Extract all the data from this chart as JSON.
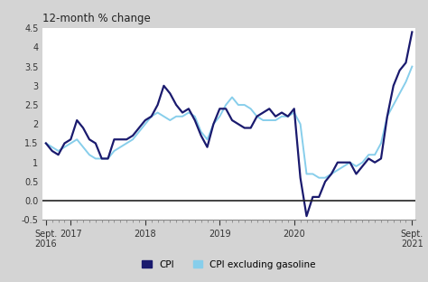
{
  "title": "12-month % change",
  "background_color": "#d4d4d4",
  "plot_bg_color": "#ffffff",
  "ylim": [
    -0.5,
    4.5
  ],
  "cpi_color": "#1a1a6e",
  "cpi_ex_color": "#87ceeb",
  "legend_cpi": "CPI",
  "legend_cpi_ex": "CPI excluding gasoline",
  "cpi": [
    1.5,
    1.3,
    1.2,
    1.5,
    1.6,
    2.1,
    1.9,
    1.6,
    1.5,
    1.1,
    1.1,
    1.6,
    1.6,
    1.6,
    1.7,
    1.9,
    2.1,
    2.2,
    2.5,
    3.0,
    2.8,
    2.5,
    2.3,
    2.4,
    2.1,
    1.7,
    1.4,
    2.0,
    2.4,
    2.4,
    2.1,
    2.0,
    1.9,
    1.9,
    2.2,
    2.3,
    2.4,
    2.2,
    2.3,
    2.2,
    2.4,
    0.6,
    -0.4,
    0.1,
    0.1,
    0.5,
    0.7,
    1.0,
    1.0,
    1.0,
    0.7,
    0.9,
    1.1,
    1.0,
    1.1,
    2.2,
    3.0,
    3.4,
    3.6,
    4.4
  ],
  "cpi_ex": [
    1.5,
    1.4,
    1.3,
    1.4,
    1.5,
    1.6,
    1.4,
    1.2,
    1.1,
    1.1,
    1.1,
    1.3,
    1.4,
    1.5,
    1.6,
    1.8,
    2.0,
    2.2,
    2.3,
    2.2,
    2.1,
    2.2,
    2.2,
    2.3,
    2.2,
    1.8,
    1.6,
    2.0,
    2.2,
    2.5,
    2.7,
    2.5,
    2.5,
    2.4,
    2.2,
    2.1,
    2.1,
    2.1,
    2.2,
    2.2,
    2.3,
    2.0,
    0.7,
    0.7,
    0.6,
    0.6,
    0.7,
    0.8,
    0.9,
    1.0,
    0.9,
    1.0,
    1.2,
    1.2,
    1.5,
    2.2,
    2.5,
    2.8,
    3.1,
    3.5
  ]
}
